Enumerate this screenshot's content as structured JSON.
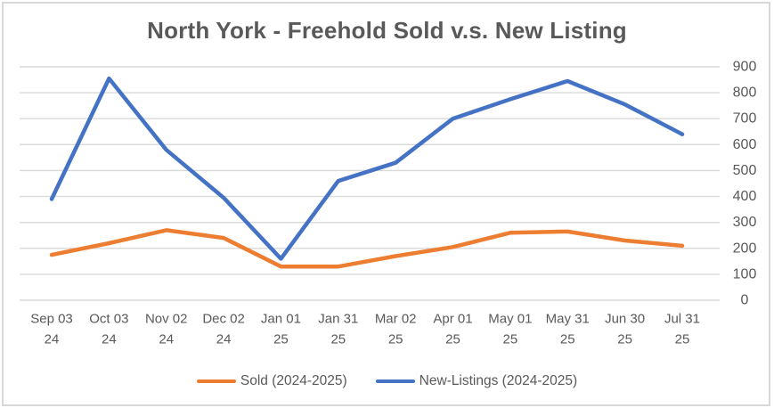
{
  "chart_data": {
    "type": "line",
    "title": "North York - Freehold Sold v.s. New Listing",
    "categories": [
      [
        "Sep 03",
        "24"
      ],
      [
        "Oct 03",
        "24"
      ],
      [
        "Nov 02",
        "24"
      ],
      [
        "Dec 02",
        "24"
      ],
      [
        "Jan 01",
        "25"
      ],
      [
        "Jan 31",
        "25"
      ],
      [
        "Mar 02",
        "25"
      ],
      [
        "Apr 01",
        "25"
      ],
      [
        "May 01",
        "25"
      ],
      [
        "May 31",
        "25"
      ],
      [
        "Jun 30",
        "25"
      ],
      [
        "Jul 31",
        "25"
      ]
    ],
    "series": [
      {
        "name": "Sold (2024-2025)",
        "color": "#ED7D31",
        "values": [
          175,
          220,
          270,
          240,
          130,
          130,
          170,
          205,
          260,
          265,
          230,
          210
        ]
      },
      {
        "name": "New-Listings (2024-2025)",
        "color": "#4472C4",
        "values": [
          390,
          855,
          580,
          395,
          160,
          460,
          530,
          700,
          775,
          845,
          755,
          640
        ]
      }
    ],
    "xlabel": "",
    "ylabel": "",
    "ylim": [
      0,
      900
    ],
    "y_ticks": [
      0,
      100,
      200,
      300,
      400,
      500,
      600,
      700,
      800,
      900
    ],
    "y_axis_side": "right",
    "grid": true,
    "legend_position": "bottom"
  },
  "colors": {
    "title_text": "#595959",
    "axis_text": "#595959",
    "gridline": "#D9D9D9",
    "chart_border": "#D8D8DA",
    "background": "#FFFFFF"
  }
}
